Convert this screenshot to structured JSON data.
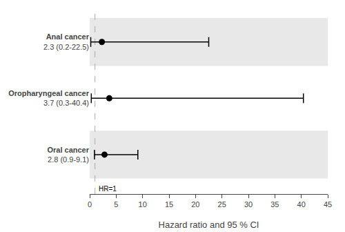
{
  "chart_data": {
    "type": "forest",
    "categories": [
      "Anal cancer",
      "Oropharyngeal cancer",
      "Oral cancer"
    ],
    "values": [
      2.3,
      3.7,
      2.8
    ],
    "value_labels": [
      "2.3 (0.2-22.5)",
      "3.7 (0.3-40.4)",
      "2.8 (0.9-9.1)"
    ],
    "ci_low": [
      0.2,
      0.3,
      0.9
    ],
    "ci_high": [
      22.5,
      40.4,
      9.1
    ],
    "xlim": [
      0,
      45
    ],
    "xticks": [
      0,
      5,
      10,
      15,
      20,
      25,
      30,
      35,
      40,
      45
    ],
    "xlabel": "Hazard ratio and 95 % CI",
    "reference_line": {
      "value": 1,
      "label": "HR=1"
    },
    "color": "#000000",
    "grid": false
  }
}
